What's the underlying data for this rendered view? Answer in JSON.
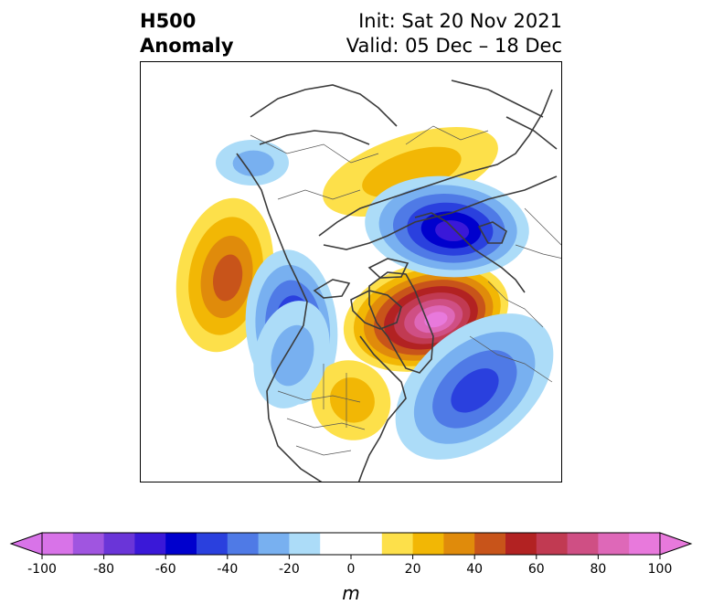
{
  "header": {
    "title_line1": "H500",
    "title_line2": "Anomaly",
    "init": "Init: Sat 20 Nov 2021",
    "valid": "Valid: 05 Dec – 18 Dec"
  },
  "colorbar": {
    "unit": "m",
    "min": -100,
    "max": 100,
    "step": 10,
    "tick_values": [
      -100,
      -80,
      -60,
      -40,
      -20,
      0,
      20,
      40,
      60,
      80,
      100
    ],
    "tick_labels": [
      "-100",
      "-80",
      "-60",
      "-40",
      "-20",
      "0",
      "20",
      "40",
      "60",
      "80",
      "100"
    ],
    "colors": [
      "#d873e8",
      "#a055e0",
      "#6a35d8",
      "#3a18d8",
      "#0000cd",
      "#2a40de",
      "#4f7ae6",
      "#78b0f0",
      "#acdcf8",
      "#ffffff",
      "#ffffff",
      "#fde04a",
      "#f2b705",
      "#e08b0b",
      "#c8541a",
      "#b22222",
      "#c13a52",
      "#cf4f84",
      "#de68b8",
      "#e879dc"
    ]
  },
  "anomalies": [
    {
      "type": "positive",
      "peak_m": 40
    },
    {
      "type": "negative",
      "peak_m": -50
    },
    {
      "type": "positive",
      "peak_m": 20
    },
    {
      "type": "positive",
      "peak_m": 90
    },
    {
      "type": "negative",
      "peak_m": -40
    },
    {
      "type": "negative",
      "peak_m": -20
    },
    {
      "type": "positive",
      "peak_m": 20
    },
    {
      "type": "negative",
      "peak_m": -60
    },
    {
      "type": "negative",
      "peak_m": -20
    }
  ]
}
